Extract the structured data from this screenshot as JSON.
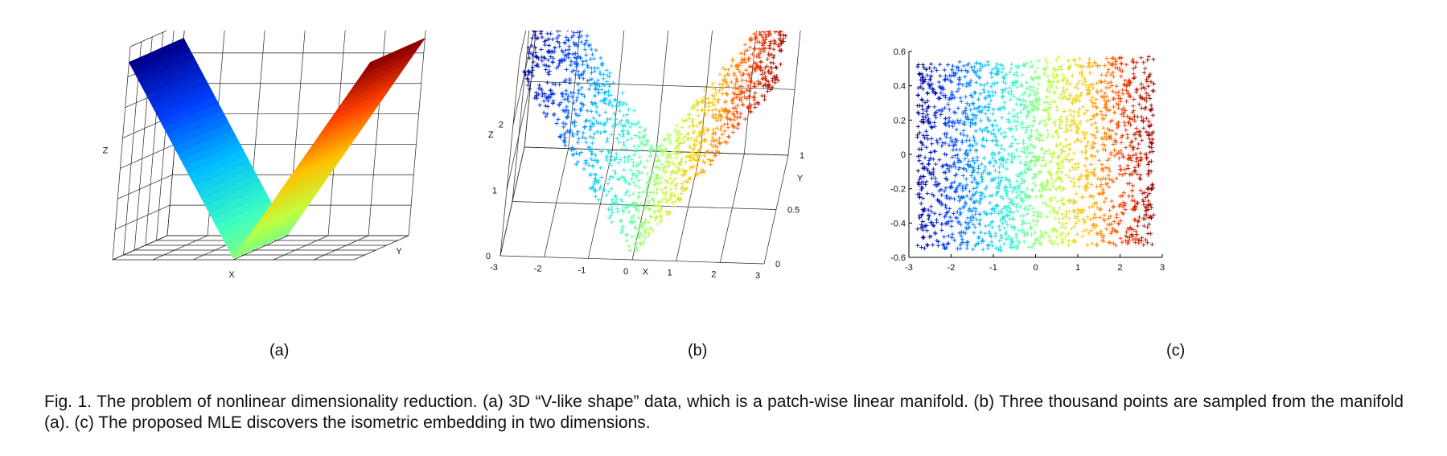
{
  "figure": {
    "caption": "Fig. 1. The problem of nonlinear dimensionality reduction. (a) 3D “V-like shape” data, which is a patch-wise linear manifold. (b) Three thousand points are sampled from the manifold (a). (c) The proposed MLE discovers the isometric embedding in two dimensions.",
    "colormap": [
      "#00008f",
      "#0040ff",
      "#00bfff",
      "#3fffbf",
      "#bfff3f",
      "#ffbf00",
      "#ff4000",
      "#8f0000"
    ]
  },
  "panels": [
    {
      "sublabel": "(a)"
    },
    {
      "sublabel": "(b)"
    },
    {
      "sublabel": "(c)"
    }
  ],
  "chart_data": [
    {
      "type": "surface",
      "panel": "(a)",
      "xlabel": "X",
      "ylabel": "Y",
      "zlabel": "Z",
      "shape": "V-shaped surface, z = |x|, colored by x",
      "grid": true
    },
    {
      "type": "scatter",
      "panel": "(b)",
      "xlabel": "X",
      "ylabel": "Y",
      "zlabel": "Z",
      "x_ticks": [
        "-3",
        "-2",
        "-1",
        "0",
        "1",
        "2",
        "3"
      ],
      "y_ticks": [
        "0",
        "0.5",
        "1"
      ],
      "z_ticks": [
        "0",
        "1",
        "2"
      ],
      "xlim": [
        -3,
        3
      ],
      "ylim": [
        0,
        1
      ],
      "zlim": [
        0,
        3
      ],
      "n_points": 3000,
      "marker": "+",
      "grid": true
    },
    {
      "type": "scatter",
      "panel": "(c)",
      "x_ticks": [
        "-3",
        "-2",
        "-1",
        "0",
        "1",
        "2",
        "3"
      ],
      "y_ticks": [
        "-0.6",
        "-0.4",
        "-0.2",
        "0",
        "0.2",
        "0.4",
        "0.6"
      ],
      "xlim": [
        -3,
        3
      ],
      "ylim": [
        -0.6,
        0.6
      ],
      "point_extent_x": [
        -2.8,
        2.8
      ],
      "point_extent_y": [
        -0.55,
        0.55
      ],
      "marker": "+",
      "grid": false
    }
  ]
}
